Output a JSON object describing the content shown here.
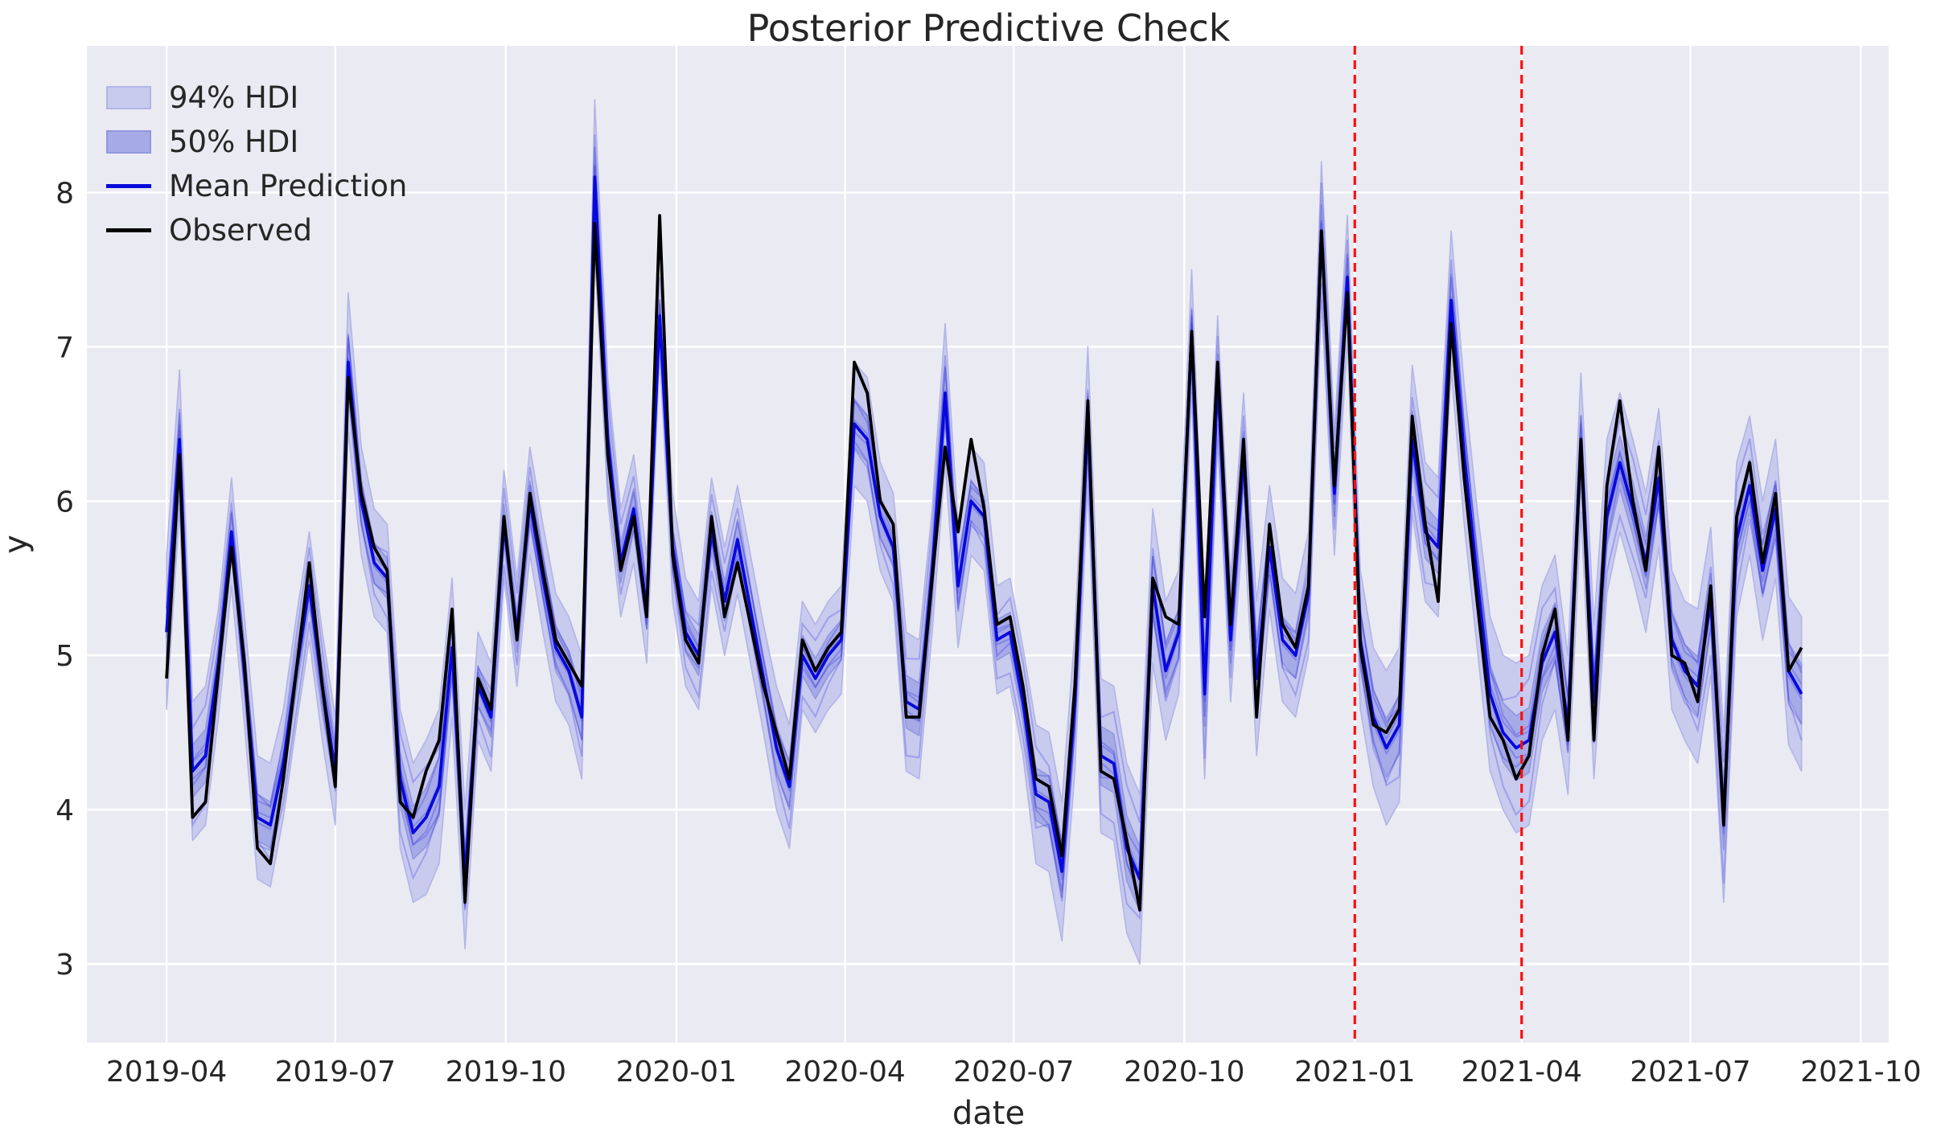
{
  "title": "Posterior Predictive Check",
  "axis": {
    "xlabel": "date",
    "ylabel": "y"
  },
  "legend": [
    "94% HDI",
    "50% HDI",
    "Mean Prediction",
    "Observed"
  ],
  "colors": {
    "figure_bg": "#ffffff",
    "plot_bg": "#eaeaf2",
    "grid": "#ffffff",
    "hdi94_fill": "#c8caee",
    "hdi94_edge": "#b2b5e6",
    "hdi50_fill": "#a6aae6",
    "hdi50_edge": "#9297de",
    "mean_line": "#0808dd",
    "observed_line": "#000000",
    "vline": "#ff0f0f",
    "text": "#262626"
  },
  "chart_data": {
    "type": "line",
    "title": "Posterior Predictive Check",
    "xlabel": "date",
    "ylabel": "y",
    "grid": true,
    "legend_position": "upper left",
    "x_start_date": "2019-04-01",
    "x_interval_days": 7,
    "n_points": 127,
    "xlim": [
      "2019-02-17",
      "2021-10-16"
    ],
    "ylim": [
      2.49,
      8.95
    ],
    "y_ticks": [
      3,
      4,
      5,
      6,
      7,
      8
    ],
    "x_ticks": [
      {
        "label": "2019-04",
        "date": "2019-04-01"
      },
      {
        "label": "2019-07",
        "date": "2019-07-01"
      },
      {
        "label": "2019-10",
        "date": "2019-10-01"
      },
      {
        "label": "2020-01",
        "date": "2020-01-01"
      },
      {
        "label": "2020-04",
        "date": "2020-04-01"
      },
      {
        "label": "2020-07",
        "date": "2020-07-01"
      },
      {
        "label": "2020-10",
        "date": "2020-10-01"
      },
      {
        "label": "2021-01",
        "date": "2021-01-01"
      },
      {
        "label": "2021-04",
        "date": "2021-04-01"
      },
      {
        "label": "2021-07",
        "date": "2021-07-01"
      },
      {
        "label": "2021-10",
        "date": "2021-10-01"
      }
    ],
    "vlines": [
      {
        "date": "2021-01-01",
        "style": "dashed",
        "color": "red"
      },
      {
        "date": "2021-04-01",
        "style": "dashed",
        "color": "red"
      }
    ],
    "series": [
      {
        "name": "Observed",
        "type": "line",
        "values": [
          4.85,
          6.3,
          3.95,
          4.05,
          4.9,
          5.7,
          4.95,
          3.75,
          3.65,
          4.2,
          4.9,
          5.6,
          4.8,
          4.15,
          6.8,
          6.05,
          5.7,
          5.55,
          4.05,
          3.95,
          4.25,
          4.45,
          5.3,
          3.4,
          4.85,
          4.65,
          5.9,
          5.1,
          6.05,
          5.55,
          5.1,
          4.95,
          4.8,
          7.8,
          6.3,
          5.55,
          5.9,
          5.25,
          7.85,
          5.65,
          5.1,
          4.95,
          5.9,
          5.25,
          5.6,
          5.2,
          4.8,
          4.5,
          4.2,
          5.1,
          4.9,
          5.05,
          5.15,
          6.9,
          6.7,
          6.0,
          5.85,
          4.6,
          4.6,
          5.5,
          6.35,
          5.8,
          6.4,
          5.95,
          5.2,
          5.25,
          4.8,
          4.2,
          4.15,
          3.7,
          4.8,
          6.65,
          4.25,
          4.2,
          3.8,
          3.35,
          5.5,
          5.25,
          5.2,
          7.1,
          5.25,
          6.9,
          5.2,
          6.4,
          4.6,
          5.85,
          5.2,
          5.05,
          5.45,
          7.75,
          6.1,
          7.35,
          5.05,
          4.55,
          4.5,
          4.65,
          6.55,
          5.85,
          5.35,
          7.15,
          6.15,
          5.35,
          4.6,
          4.45,
          4.2,
          4.35,
          5.0,
          5.3,
          4.45,
          6.4,
          4.45,
          6.1,
          6.65,
          6.0,
          5.55,
          6.35,
          5.0,
          4.95,
          4.7,
          5.45,
          3.9,
          5.9,
          6.25,
          5.6,
          6.05,
          4.9,
          5.05
        ]
      },
      {
        "name": "Mean Prediction",
        "type": "line",
        "values": [
          5.15,
          6.4,
          4.25,
          4.35,
          4.95,
          5.8,
          4.9,
          3.95,
          3.9,
          4.3,
          4.9,
          5.45,
          4.8,
          4.25,
          6.9,
          6.0,
          5.6,
          5.5,
          4.2,
          3.85,
          3.95,
          4.15,
          5.05,
          3.55,
          4.8,
          4.6,
          5.85,
          5.15,
          6.0,
          5.5,
          5.05,
          4.9,
          4.6,
          8.1,
          6.4,
          5.6,
          5.95,
          5.3,
          7.2,
          5.7,
          5.15,
          5.0,
          5.8,
          5.35,
          5.75,
          5.3,
          4.85,
          4.4,
          4.15,
          5.0,
          4.85,
          5.0,
          5.1,
          6.5,
          6.4,
          5.9,
          5.7,
          4.7,
          4.65,
          5.55,
          6.7,
          5.45,
          6.0,
          5.9,
          5.1,
          5.15,
          4.7,
          4.1,
          4.05,
          3.6,
          4.7,
          6.55,
          4.35,
          4.3,
          3.75,
          3.55,
          5.45,
          4.9,
          5.15,
          7.1,
          4.75,
          6.8,
          5.1,
          6.3,
          4.85,
          5.7,
          5.1,
          5.0,
          5.4,
          7.75,
          6.05,
          7.45,
          5.1,
          4.6,
          4.4,
          4.55,
          6.4,
          5.8,
          5.7,
          7.3,
          6.3,
          5.5,
          4.75,
          4.5,
          4.4,
          4.45,
          4.95,
          5.15,
          4.55,
          6.38,
          4.7,
          5.9,
          6.25,
          5.95,
          5.6,
          6.15,
          5.1,
          4.9,
          4.8,
          5.35,
          3.95,
          5.75,
          6.1,
          5.55,
          5.95,
          4.9,
          4.75
        ]
      },
      {
        "name": "94% HDI",
        "type": "band",
        "around": "Mean Prediction",
        "half_width": [
          0.5,
          0.45,
          0.45,
          0.45,
          0.35,
          0.35,
          0.35,
          0.4,
          0.4,
          0.35,
          0.35,
          0.35,
          0.35,
          0.35,
          0.45,
          0.35,
          0.35,
          0.35,
          0.45,
          0.45,
          0.5,
          0.5,
          0.45,
          0.45,
          0.35,
          0.35,
          0.35,
          0.35,
          0.35,
          0.35,
          0.35,
          0.35,
          0.4,
          0.5,
          0.4,
          0.35,
          0.35,
          0.35,
          0.25,
          0.35,
          0.35,
          0.35,
          0.35,
          0.35,
          0.35,
          0.35,
          0.35,
          0.4,
          0.4,
          0.35,
          0.35,
          0.35,
          0.35,
          0.4,
          0.4,
          0.35,
          0.35,
          0.45,
          0.45,
          0.4,
          0.45,
          0.4,
          0.35,
          0.35,
          0.35,
          0.35,
          0.35,
          0.45,
          0.45,
          0.45,
          0.45,
          0.45,
          0.5,
          0.5,
          0.55,
          0.55,
          0.5,
          0.45,
          0.4,
          0.4,
          0.55,
          0.4,
          0.4,
          0.4,
          0.5,
          0.4,
          0.4,
          0.4,
          0.4,
          0.45,
          0.4,
          0.4,
          0.45,
          0.45,
          0.5,
          0.5,
          0.48,
          0.45,
          0.45,
          0.45,
          0.45,
          0.45,
          0.5,
          0.5,
          0.55,
          0.55,
          0.5,
          0.5,
          0.45,
          0.45,
          0.5,
          0.5,
          0.45,
          0.45,
          0.45,
          0.45,
          0.45,
          0.45,
          0.5,
          0.48,
          0.55,
          0.5,
          0.45,
          0.45,
          0.45,
          0.48,
          0.5
        ]
      },
      {
        "name": "50% HDI",
        "type": "band",
        "around": "Mean Prediction",
        "half_width": [
          0.19,
          0.17,
          0.17,
          0.17,
          0.13,
          0.13,
          0.13,
          0.15,
          0.15,
          0.13,
          0.13,
          0.13,
          0.13,
          0.13,
          0.17,
          0.13,
          0.13,
          0.13,
          0.17,
          0.17,
          0.19,
          0.19,
          0.17,
          0.17,
          0.13,
          0.13,
          0.13,
          0.13,
          0.13,
          0.13,
          0.13,
          0.13,
          0.15,
          0.19,
          0.15,
          0.13,
          0.13,
          0.13,
          0.1,
          0.13,
          0.13,
          0.13,
          0.13,
          0.13,
          0.13,
          0.13,
          0.13,
          0.15,
          0.15,
          0.13,
          0.13,
          0.13,
          0.13,
          0.15,
          0.15,
          0.13,
          0.13,
          0.17,
          0.17,
          0.15,
          0.17,
          0.15,
          0.13,
          0.13,
          0.13,
          0.13,
          0.13,
          0.17,
          0.17,
          0.17,
          0.17,
          0.17,
          0.19,
          0.19,
          0.21,
          0.21,
          0.19,
          0.17,
          0.15,
          0.15,
          0.21,
          0.15,
          0.15,
          0.15,
          0.19,
          0.15,
          0.15,
          0.15,
          0.15,
          0.17,
          0.15,
          0.15,
          0.17,
          0.17,
          0.19,
          0.19,
          0.18,
          0.17,
          0.17,
          0.17,
          0.17,
          0.17,
          0.19,
          0.19,
          0.21,
          0.21,
          0.19,
          0.19,
          0.17,
          0.17,
          0.19,
          0.19,
          0.17,
          0.17,
          0.17,
          0.17,
          0.17,
          0.17,
          0.19,
          0.18,
          0.21,
          0.19,
          0.17,
          0.17,
          0.17,
          0.18,
          0.19
        ]
      }
    ]
  }
}
